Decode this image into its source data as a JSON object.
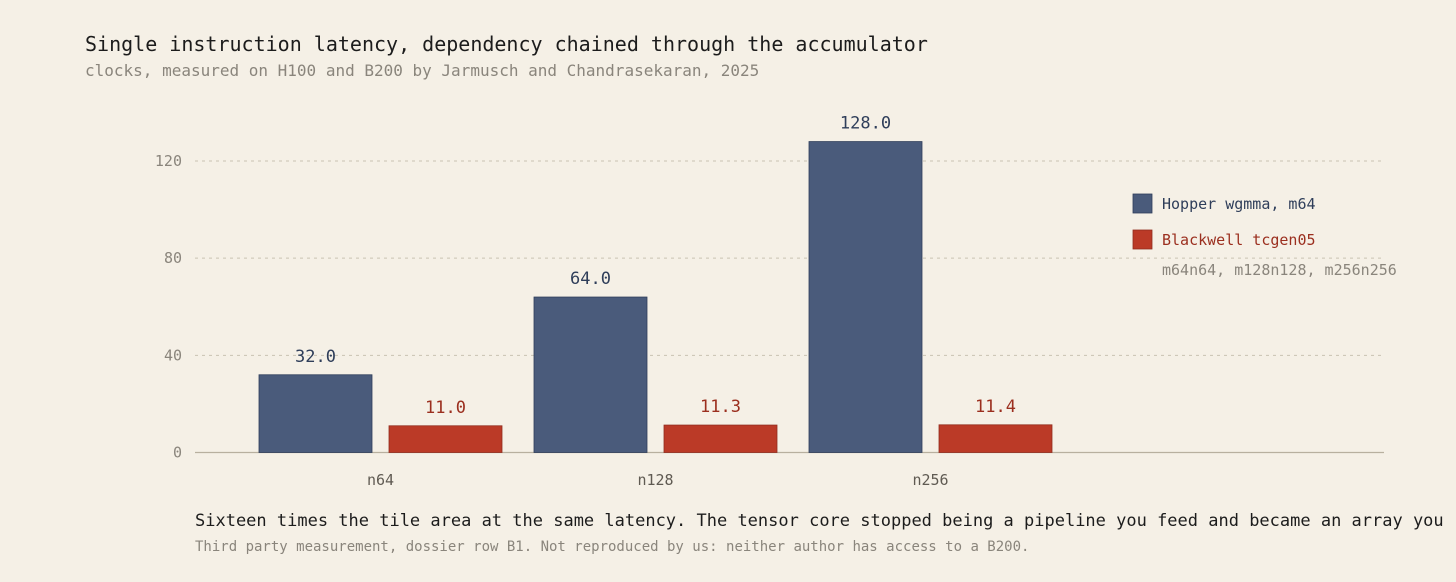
{
  "header": {
    "title": "Single instruction latency, dependency chained through the accumulator",
    "subtitle": "clocks, measured on H100 and B200 by Jarmusch and Chandrasekaran, 2025"
  },
  "chart_data": {
    "type": "bar",
    "categories": [
      "n64",
      "n128",
      "n256"
    ],
    "series": [
      {
        "name": "Hopper wgmma, m64",
        "values": [
          32.0,
          64.0,
          128.0
        ],
        "labels": [
          "32.0",
          "64.0",
          "128.0"
        ],
        "color": "#4a5b7b"
      },
      {
        "name": "Blackwell tcgen05",
        "sublabel": "m64n64, m128n128, m256n256",
        "values": [
          11.0,
          11.3,
          11.4
        ],
        "labels": [
          "11.0",
          "11.3",
          "11.4"
        ],
        "color": "#bb3a27"
      }
    ],
    "yticks": [
      0,
      40,
      80,
      120
    ],
    "ylim": [
      0,
      140
    ],
    "grid": true,
    "legend": "right"
  },
  "footer": {
    "note": "Sixteen times the tile area at the same latency. The tensor core stopped being a pipeline you feed and became an array you",
    "source": "Third party measurement, dossier row B1. Not reproduced by us: neither author has access to a B200."
  }
}
